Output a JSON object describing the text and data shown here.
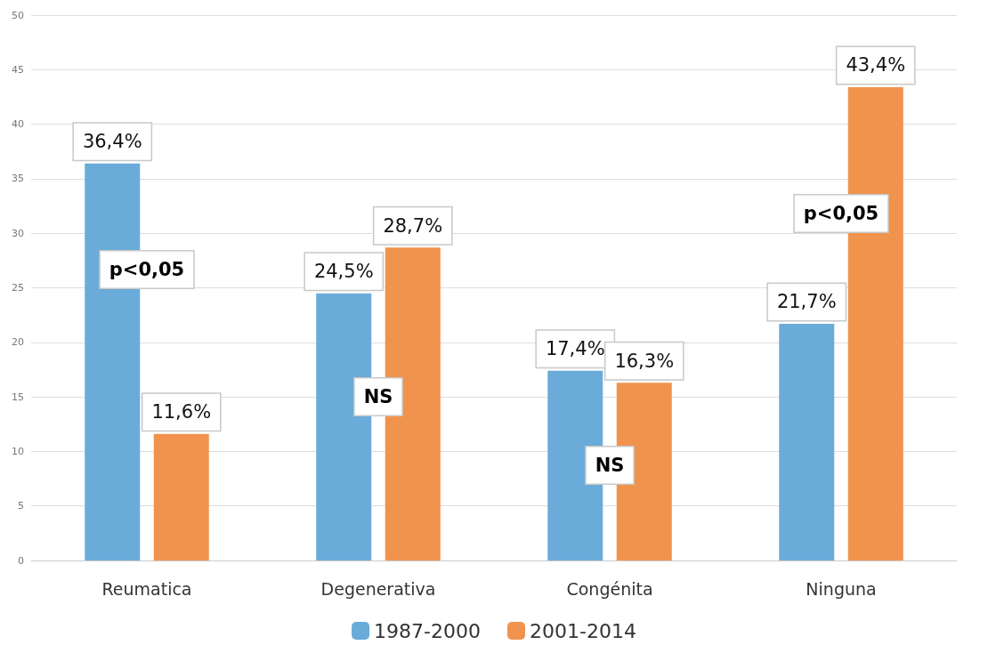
{
  "chart_data": {
    "type": "bar",
    "categories": [
      "Reumatica",
      "Degenerativa",
      "Congénita",
      "Ninguna"
    ],
    "series": [
      {
        "name": "1987-2000",
        "color": "#6aabd9",
        "values": [
          36.4,
          24.5,
          17.4,
          21.7
        ],
        "value_labels": [
          "36,4%",
          "24,5%",
          "17,4%",
          "21,7%"
        ]
      },
      {
        "name": "2001-2014",
        "color": "#f0934d",
        "values": [
          11.6,
          28.7,
          16.3,
          43.4
        ],
        "value_labels": [
          "11,6%",
          "28,7%",
          "16,3%",
          "43,4%"
        ]
      }
    ],
    "ylim": [
      0,
      50
    ],
    "yticks": [
      0,
      5,
      10,
      15,
      20,
      25,
      30,
      35,
      40,
      45,
      50
    ],
    "grid": "y",
    "legend": "bottom",
    "annotations": [
      "p<0,05",
      "NS",
      "NS",
      "p<0,05"
    ]
  }
}
